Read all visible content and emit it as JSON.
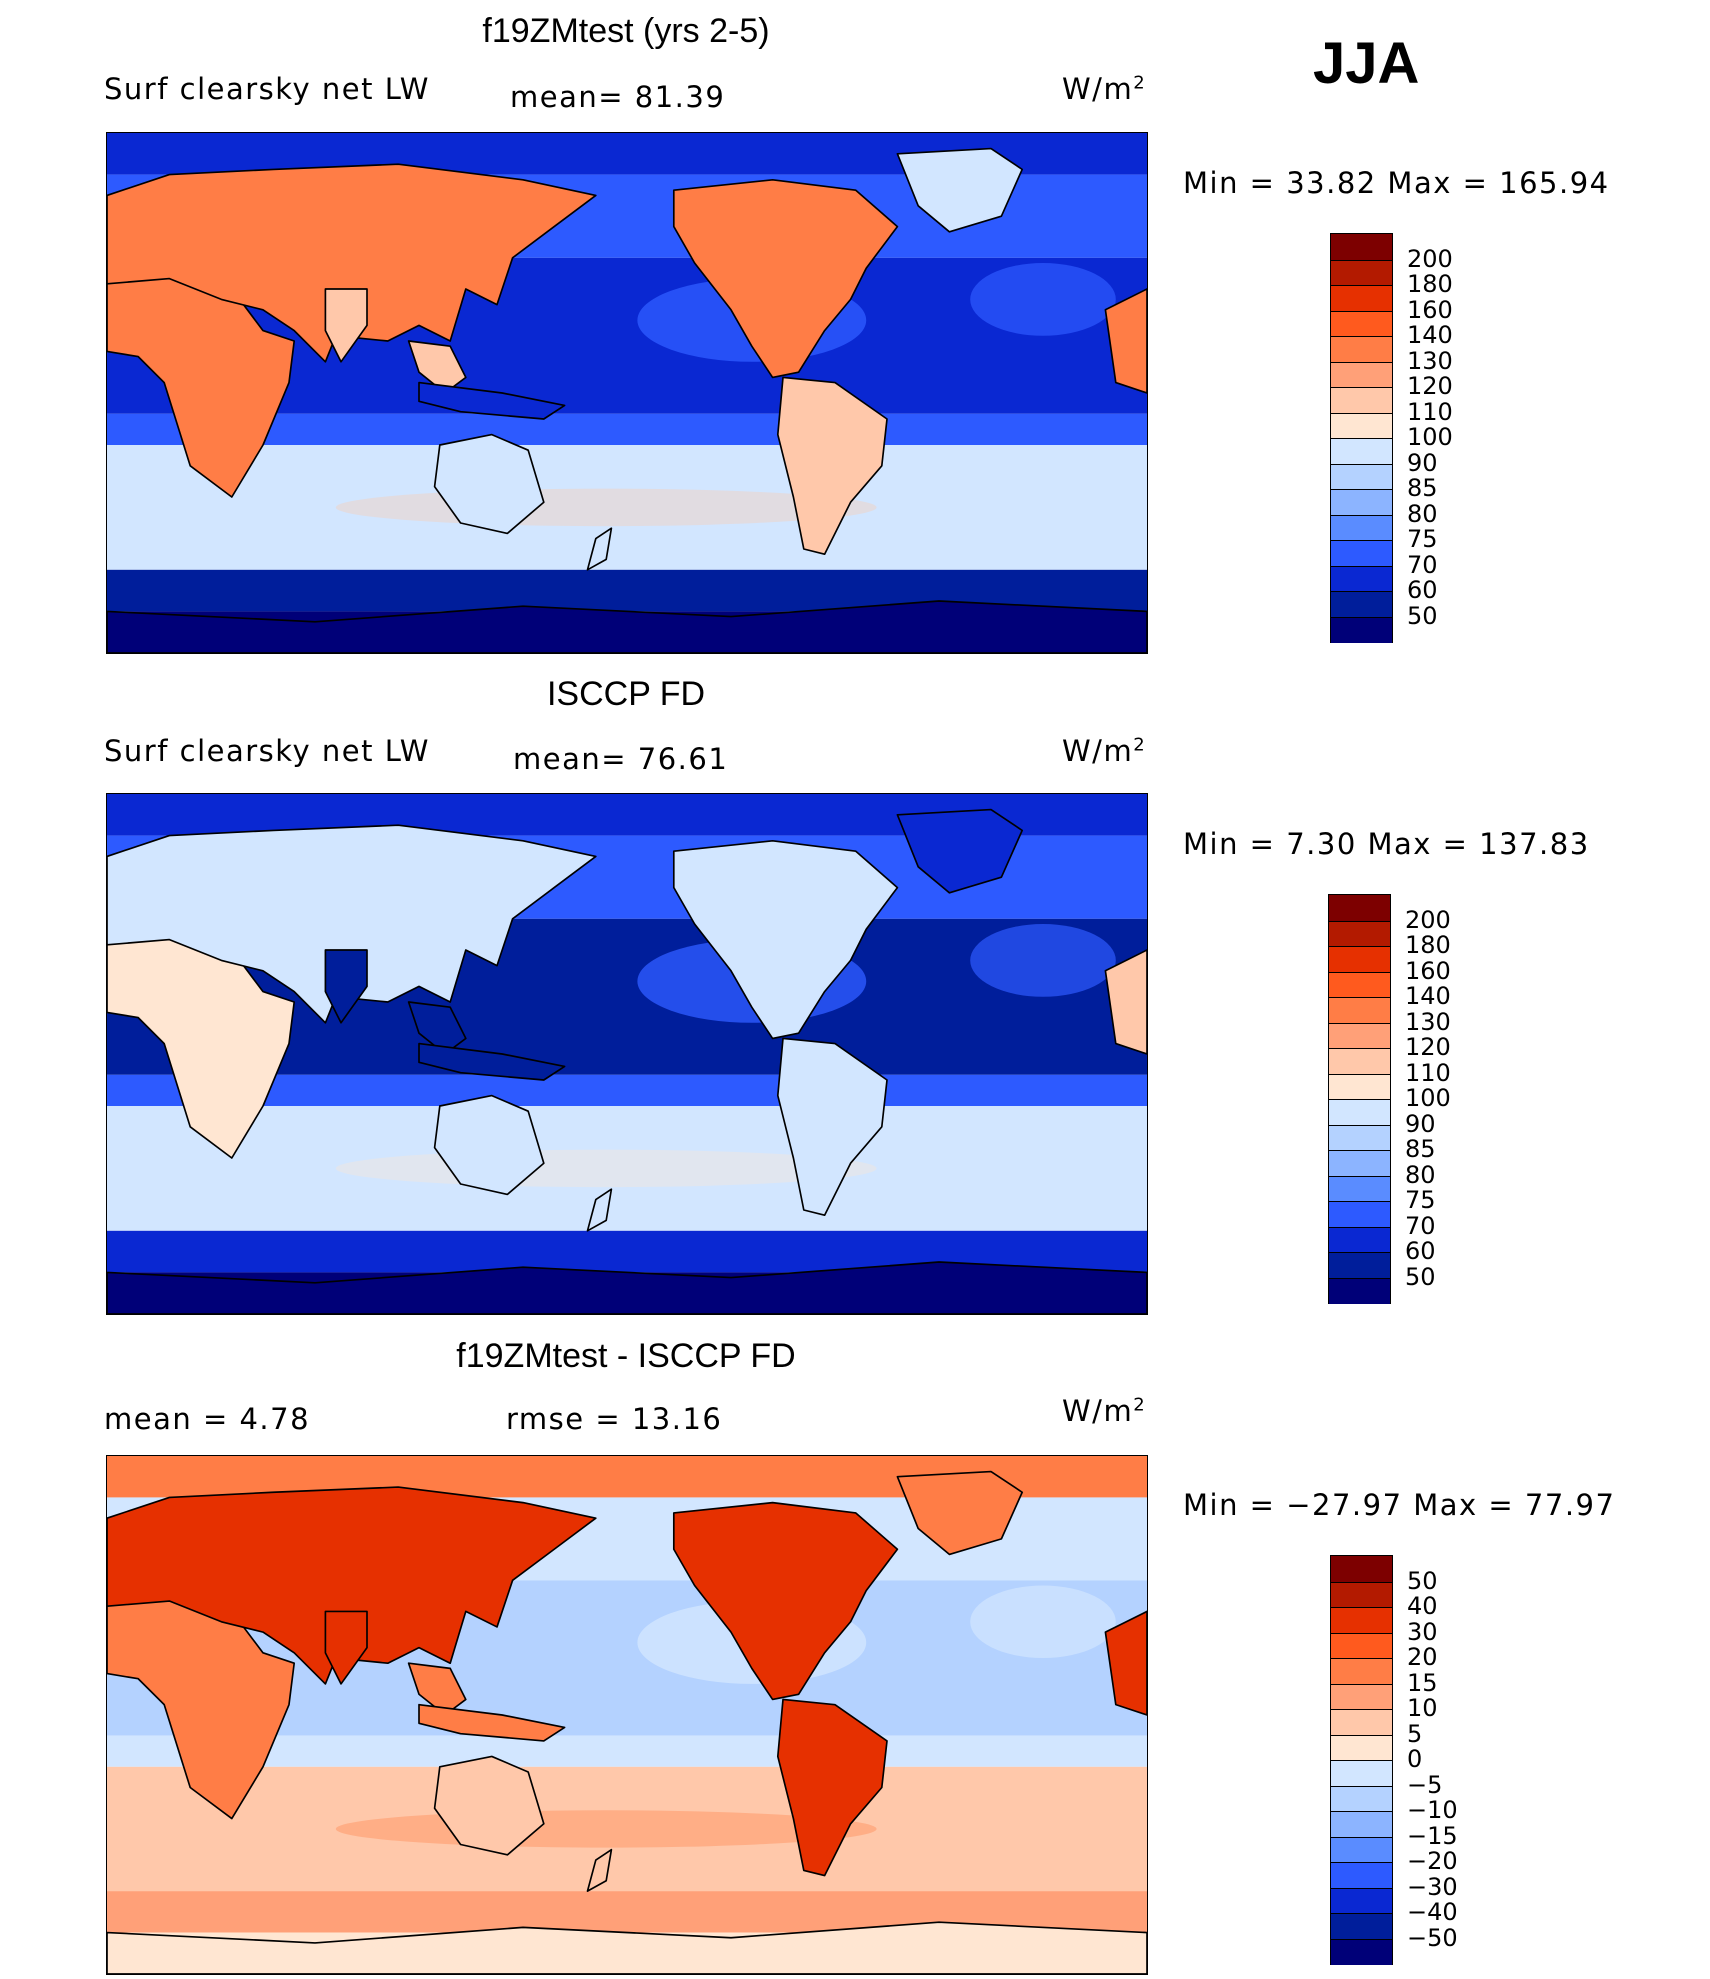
{
  "season": "JJA",
  "units_label": "W/m",
  "units_power": "2",
  "panels": [
    {
      "id": "model",
      "title": "f19ZMtest (yrs 2-5)",
      "variable": "Surf clearsky net LW",
      "stat_text": "mean=   81.39",
      "minmax_text": "Min  =    33.82  Max  =  165.94",
      "colorbar": {
        "labels": [
          "200",
          "180",
          "160",
          "140",
          "130",
          "120",
          "110",
          "100",
          "90",
          "85",
          "80",
          "75",
          "70",
          "60",
          "50"
        ],
        "colors": [
          "#7d0000",
          "#b31a00",
          "#e63000",
          "#ff5a1e",
          "#ff7d46",
          "#ffa078",
          "#ffc8aa",
          "#ffe6d2",
          "#d2e6ff",
          "#b4d2ff",
          "#8cb4ff",
          "#5a8cff",
          "#2d5aff",
          "#0a28d2",
          "#001e9b",
          "#000078"
        ]
      },
      "regions": {
        "ocean_tropics": "#0a28d2",
        "ocean_subtropics": "#2d5aff",
        "ocean_south": "#d2e6ff",
        "southern_ocean": "#001e9b",
        "antarctica": "#000078",
        "arctic": "#0a28d2",
        "land_dry": "#ff7d46",
        "land_warm": "#ffc8aa",
        "land_cold": "#d2e6ff",
        "greenland": "#d2e6ff"
      }
    },
    {
      "id": "obs",
      "title": "ISCCP FD",
      "variable": "Surf clearsky net LW",
      "stat_text": "mean=   76.61",
      "minmax_text": "Min  =     7.30  Max  =  137.83",
      "colorbar": {
        "labels": [
          "200",
          "180",
          "160",
          "140",
          "130",
          "120",
          "110",
          "100",
          "90",
          "85",
          "80",
          "75",
          "70",
          "60",
          "50"
        ],
        "colors": [
          "#7d0000",
          "#b31a00",
          "#e63000",
          "#ff5a1e",
          "#ff7d46",
          "#ffa078",
          "#ffc8aa",
          "#ffe6d2",
          "#d2e6ff",
          "#b4d2ff",
          "#8cb4ff",
          "#5a8cff",
          "#2d5aff",
          "#0a28d2",
          "#001e9b",
          "#000078"
        ]
      },
      "regions": {
        "ocean_tropics": "#001e9b",
        "ocean_subtropics": "#2d5aff",
        "ocean_south": "#d2e6ff",
        "southern_ocean": "#0a28d2",
        "antarctica": "#000078",
        "arctic": "#0a28d2",
        "land_dry": "#ffc8aa",
        "land_warm": "#ffe6d2",
        "land_cold": "#d2e6ff",
        "greenland": "#0a28d2"
      }
    },
    {
      "id": "diff",
      "title": "f19ZMtest - ISCCP FD",
      "stat_text": "mean  =      4.78",
      "stat2_text": "rmse  =     13.16",
      "minmax_text": "Min  =  −27.97  Max  =     77.97",
      "colorbar": {
        "labels": [
          "50",
          "40",
          "30",
          "20",
          "15",
          "10",
          "5",
          "0",
          "−5",
          "−10",
          "−15",
          "−20",
          "−30",
          "−40",
          "−50"
        ],
        "colors": [
          "#7d0000",
          "#b31a00",
          "#e63000",
          "#ff5a1e",
          "#ff7d46",
          "#ffa078",
          "#ffc8aa",
          "#ffe6d2",
          "#d2e6ff",
          "#b4d2ff",
          "#8cb4ff",
          "#5a8cff",
          "#2d5aff",
          "#0a28d2",
          "#001e9b",
          "#000078"
        ]
      },
      "regions": {
        "ocean_tropics": "#b4d2ff",
        "ocean_subtropics": "#d2e6ff",
        "ocean_south": "#ffc8aa",
        "southern_ocean": "#ffa078",
        "antarctica": "#ffe6d2",
        "arctic": "#ff7d46",
        "land_dry": "#e63000",
        "land_warm": "#ff7d46",
        "land_cold": "#ffc8aa",
        "greenland": "#ff7d46"
      }
    }
  ]
}
